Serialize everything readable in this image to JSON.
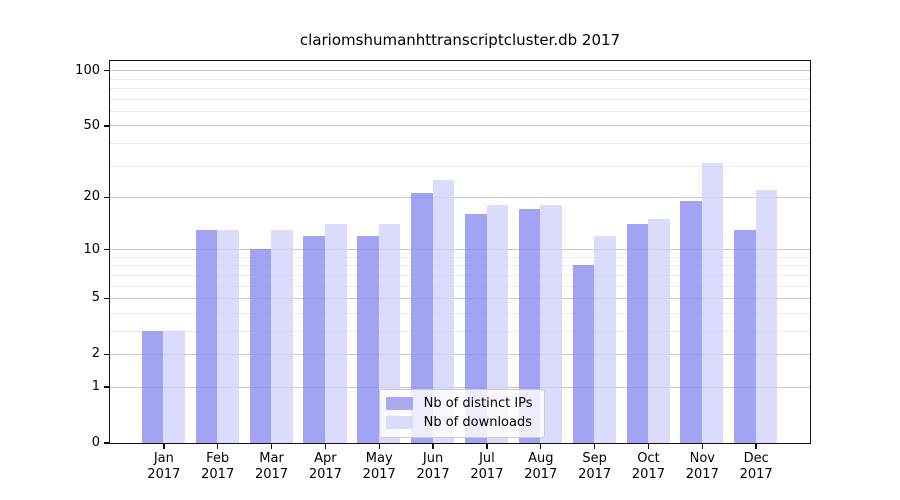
{
  "figure": {
    "title": "clariomshumanhttranscriptcluster.db 2017"
  },
  "chart_data": {
    "type": "bar",
    "title": "clariomshumanhttranscriptcluster.db 2017",
    "categories": [
      "Jan",
      "Feb",
      "Mar",
      "Apr",
      "May",
      "Jun",
      "Jul",
      "Aug",
      "Sep",
      "Oct",
      "Nov",
      "Dec"
    ],
    "category_year": "2017",
    "series": [
      {
        "name": "Nb of distinct IPs",
        "color": "#a9a9f1",
        "fill": "rgba(140,140,240,0.8)",
        "values": [
          3,
          13,
          10,
          12,
          12,
          21,
          16,
          17,
          8,
          14,
          19,
          13
        ]
      },
      {
        "name": "Nb of downloads",
        "color": "#dbdbfb",
        "fill": "rgba(210,210,250,0.8)",
        "values": [
          3,
          13,
          13,
          14,
          14,
          25,
          18,
          18,
          12,
          15,
          31,
          22
        ]
      }
    ],
    "xlabel": "",
    "ylabel": "",
    "yscale": "log1p",
    "ylim": [
      0,
      113
    ],
    "yticks": [
      0,
      1,
      2,
      5,
      10,
      20,
      50,
      100
    ],
    "yticks_minor": [
      3,
      4,
      6,
      7,
      8,
      9,
      30,
      40,
      60,
      70,
      80,
      90
    ],
    "grid": "horizontal",
    "legend_position": "inside-bottom-center",
    "bar_group_width": 0.8
  },
  "colors": {
    "grid_major": "#c8c8c8",
    "grid_minor": "#ececec",
    "axis": "#111111",
    "background": "#ffffff"
  }
}
